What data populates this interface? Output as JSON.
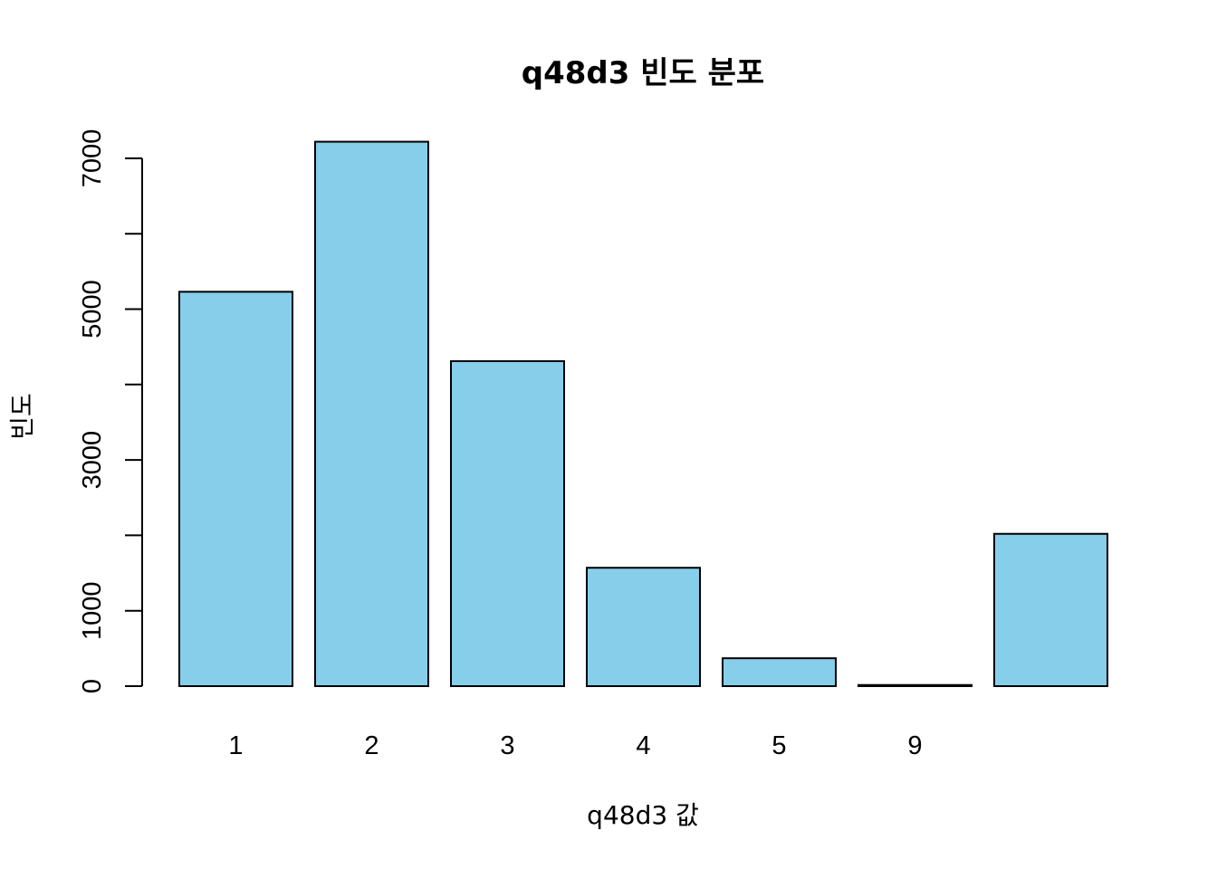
{
  "chart_data": {
    "type": "bar",
    "title": "q48d3 빈도 분포",
    "xlabel": "q48d3 값",
    "ylabel": "빈도",
    "categories": [
      "1",
      "2",
      "3",
      "4",
      "5",
      "9",
      ""
    ],
    "values": [
      5230,
      7220,
      4310,
      1570,
      370,
      15,
      2020
    ],
    "ylim": [
      0,
      7220
    ],
    "yticks": [
      0,
      1000,
      3000,
      5000,
      7000
    ],
    "yminor_ticks": [
      2000,
      4000,
      6000
    ],
    "bar_color": "#87ceeb",
    "bar_border_color": "#000000",
    "grid": false,
    "legend": "none"
  }
}
